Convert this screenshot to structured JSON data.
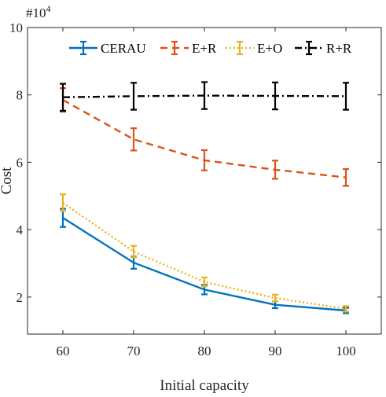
{
  "chart_data": {
    "type": "line",
    "title": "",
    "xlabel": "Initial capacity",
    "ylabel": "Cost",
    "y_multiplier_label": "#10",
    "y_multiplier_exponent": "4",
    "x": [
      60,
      70,
      80,
      90,
      100
    ],
    "xticks": [
      "60",
      "70",
      "80",
      "90",
      "100"
    ],
    "yticks": [
      "2",
      "4",
      "6",
      "8",
      "10"
    ],
    "xlim": [
      55,
      105
    ],
    "ylim": [
      0.9,
      10
    ],
    "grid": false,
    "legend_position": "top",
    "series": [
      {
        "name": "CERAU",
        "color": "#0072BD",
        "style": "solid",
        "values": [
          4.35,
          3.02,
          2.22,
          1.77,
          1.6
        ],
        "errors": [
          0.27,
          0.18,
          0.14,
          0.1,
          0.08
        ]
      },
      {
        "name": "E+R",
        "color": "#D95319",
        "style": "dashed",
        "values": [
          7.85,
          6.68,
          6.06,
          5.78,
          5.55
        ],
        "errors": [
          0.35,
          0.33,
          0.3,
          0.27,
          0.25
        ]
      },
      {
        "name": "E+O",
        "color": "#EDB120",
        "style": "dotted",
        "values": [
          4.8,
          3.35,
          2.45,
          1.97,
          1.65
        ],
        "errors": [
          0.25,
          0.17,
          0.13,
          0.1,
          0.08
        ]
      },
      {
        "name": "R+R",
        "color": "#000000",
        "style": "dashdot",
        "values": [
          7.93,
          7.96,
          7.98,
          7.97,
          7.96
        ],
        "errors": [
          0.4,
          0.4,
          0.4,
          0.4,
          0.4
        ]
      }
    ]
  }
}
